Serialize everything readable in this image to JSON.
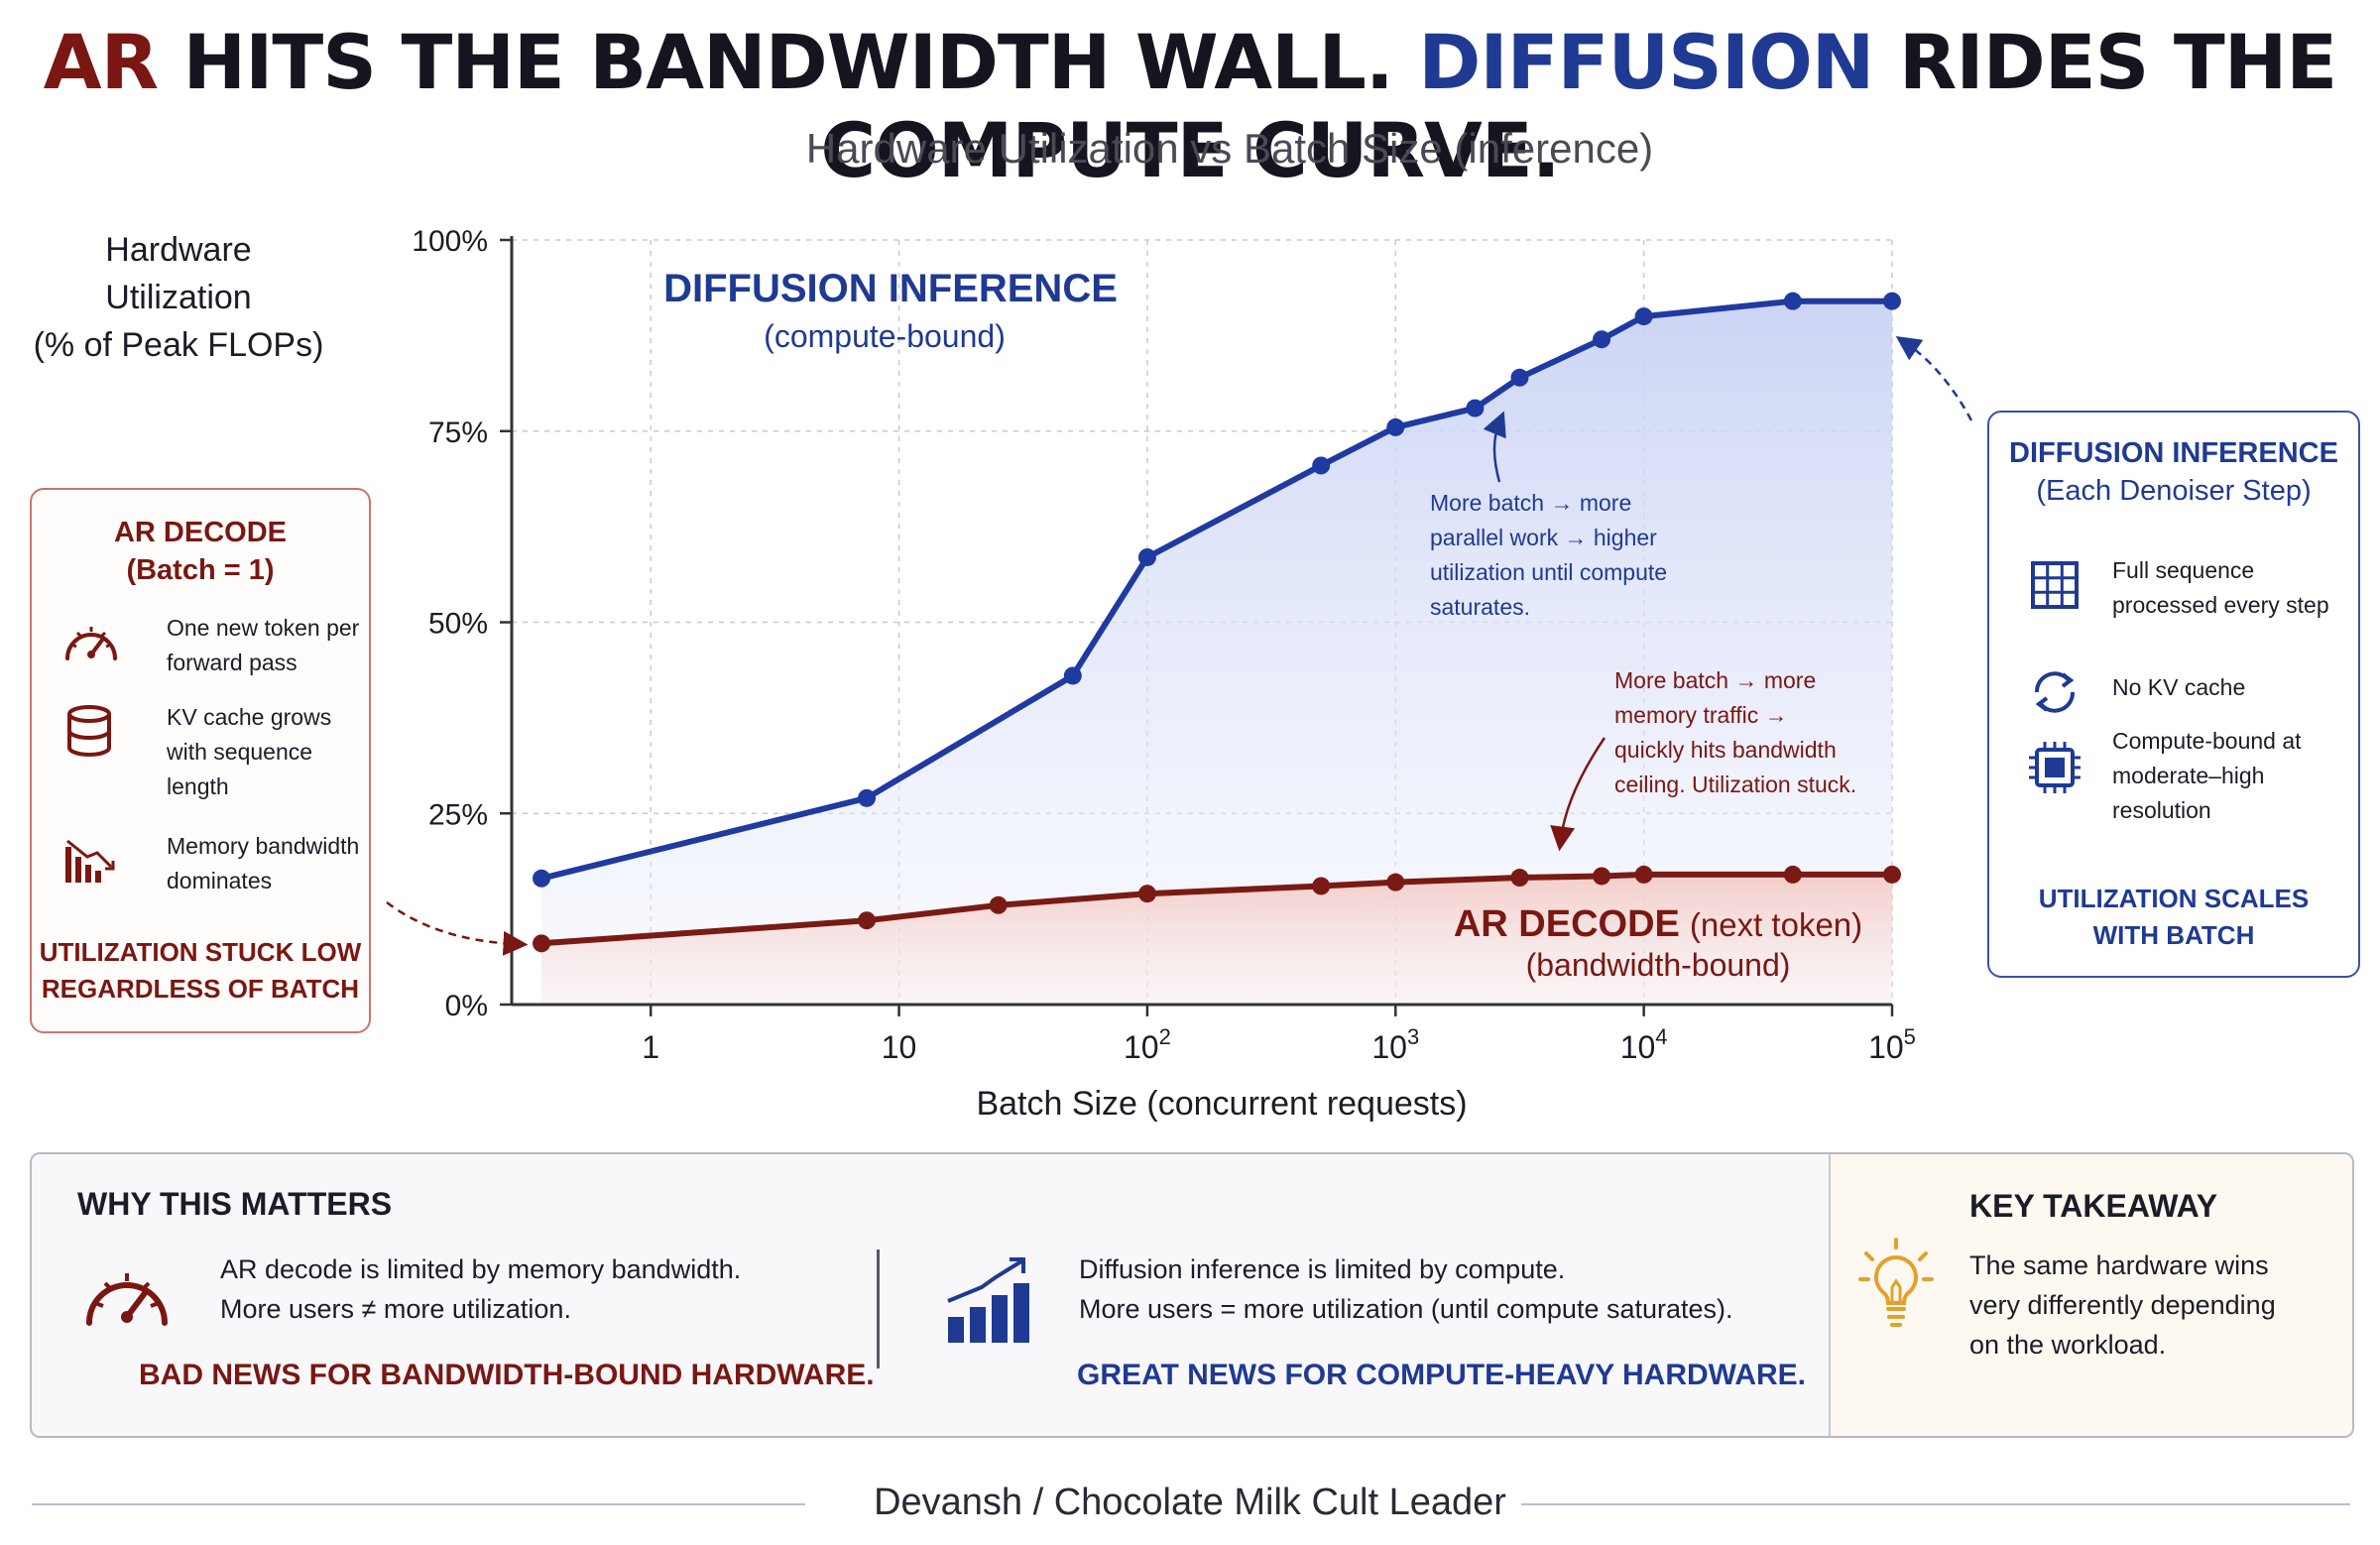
{
  "header": {
    "title_part1": "AR",
    "title_part2": " HITS THE BANDWIDTH WALL. ",
    "title_part3": "DIFFUSION",
    "title_part4": " RIDES THE COMPUTE CURVE.",
    "subtitle": "Hardware Utilization vs Batch Size (inference)"
  },
  "colors": {
    "ar": "#7a1712",
    "diffusion": "#1f3a93",
    "diffusion_line": "#1f3aa0",
    "ar_line": "#7a1a14"
  },
  "y_axis_label": [
    "Hardware",
    "Utilization",
    "(% of Peak FLOPs)"
  ],
  "chart_data": {
    "type": "line",
    "title": "Hardware Utilization vs Batch Size (inference)",
    "xlabel": "Batch Size (concurrent requests)",
    "ylabel": "Hardware Utilization (% of Peak FLOPs)",
    "x_scale": "log",
    "xlim_log10": [
      -0.56,
      5
    ],
    "ylim": [
      0,
      100
    ],
    "y_ticks": [
      0,
      25,
      50,
      75,
      100
    ],
    "y_tick_labels": [
      "0%",
      "25%",
      "50%",
      "75%",
      "100%"
    ],
    "x_ticks_log10": [
      0,
      1,
      2,
      3,
      4,
      5
    ],
    "x_tick_labels": [
      {
        "base": "1",
        "sup": ""
      },
      {
        "base": "10",
        "sup": ""
      },
      {
        "base": "10",
        "sup": "2"
      },
      {
        "base": "10",
        "sup": "3"
      },
      {
        "base": "10",
        "sup": "4"
      },
      {
        "base": "10",
        "sup": "5"
      }
    ],
    "grid": true,
    "series": [
      {
        "name": "Diffusion inference (compute-bound)",
        "x_log10": [
          -0.44,
          0.87,
          1.7,
          2.0,
          2.7,
          3.0,
          3.32,
          3.5,
          3.83,
          4.0,
          4.6,
          5.0
        ],
        "values": [
          16.5,
          27.0,
          43.0,
          58.5,
          70.5,
          75.5,
          78.0,
          82.0,
          87.0,
          90.0,
          92.0,
          92.0
        ]
      },
      {
        "name": "AR decode (bandwidth-bound)",
        "x_log10": [
          -0.44,
          0.87,
          1.4,
          2.0,
          2.7,
          3.0,
          3.5,
          3.83,
          4.0,
          4.6,
          5.0
        ],
        "values": [
          8.0,
          11.0,
          13.0,
          14.5,
          15.5,
          16.0,
          16.6,
          16.8,
          17.0,
          17.0,
          17.0
        ]
      }
    ],
    "annotations": {
      "diffusion_label": "DIFFUSION INFERENCE",
      "diffusion_sub": "(compute-bound)",
      "diffusion_note": [
        "More batch → more",
        "parallel work → higher",
        "utilization until compute",
        "saturates."
      ],
      "ar_label": "AR DECODE",
      "ar_label_sub": "(next token)",
      "ar_sub2": "(bandwidth-bound)",
      "ar_note": [
        "More batch → more",
        "memory traffic →",
        "quickly hits bandwidth",
        "ceiling. Utilization stuck."
      ]
    }
  },
  "left_panel": {
    "title": "AR DECODE",
    "subtitle": "(Batch = 1)",
    "items": [
      {
        "icon": "speedometer-icon",
        "text": "One new token per forward pass"
      },
      {
        "icon": "database-icon",
        "text": "KV cache grows with sequence length"
      },
      {
        "icon": "declining-bars-icon",
        "text": "Memory bandwidth dominates"
      }
    ],
    "footer": [
      "UTILIZATION STUCK LOW",
      "REGARDLESS OF BATCH"
    ]
  },
  "right_panel": {
    "title": "DIFFUSION INFERENCE",
    "subtitle": "(Each Denoiser Step)",
    "items": [
      {
        "icon": "grid-icon",
        "text": "Full sequence processed every step"
      },
      {
        "icon": "refresh-icon",
        "text": "No KV cache"
      },
      {
        "icon": "chip-icon",
        "text": "Compute-bound at moderate–high resolution"
      }
    ],
    "footer": [
      "UTILIZATION SCALES",
      "WITH BATCH"
    ]
  },
  "bottom": {
    "why_title": "WHY THIS MATTERS",
    "ar_lines": [
      "AR decode is limited by memory bandwidth.",
      "More users ≠ more utilization."
    ],
    "ar_verdict": "BAD NEWS FOR BANDWIDTH-BOUND HARDWARE.",
    "diff_lines": [
      "Diffusion inference is limited by compute.",
      "More users = more utilization (until compute saturates)."
    ],
    "diff_verdict": "GREAT NEWS FOR COMPUTE-HEAVY HARDWARE.",
    "takeaway_title": "KEY TAKEAWAY",
    "takeaway_lines": [
      "The same hardware wins",
      "very differently depending",
      "on the workload."
    ]
  },
  "footer": {
    "credit": "Devansh / Chocolate Milk Cult Leader"
  }
}
